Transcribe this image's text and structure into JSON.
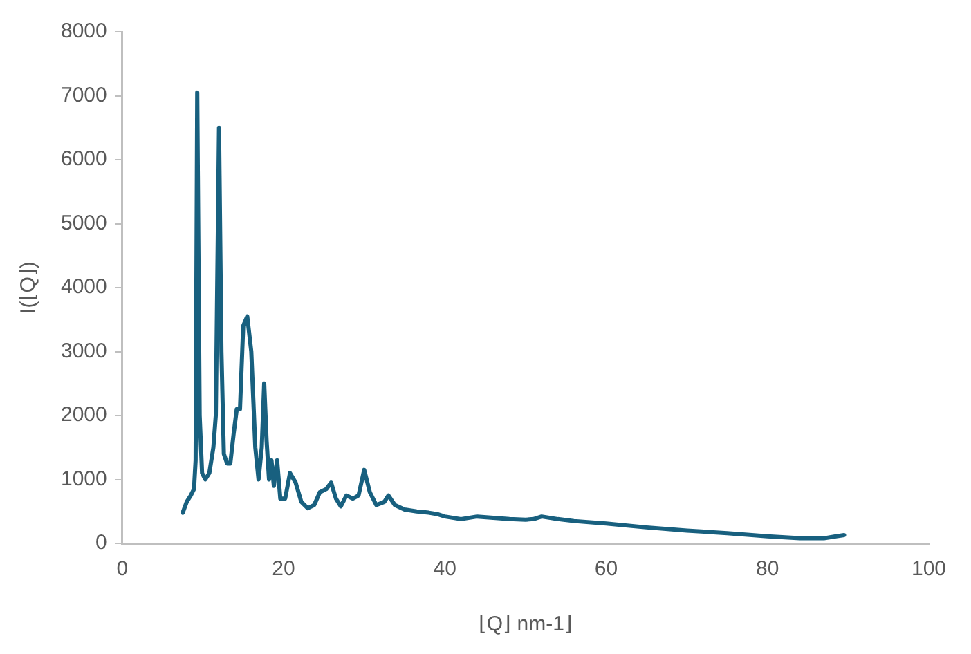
{
  "chart_data": {
    "type": "line",
    "xlabel": "⌊Q⌋ nm-1⌋",
    "ylabel": "I(⌊Q⌋)",
    "xlim": [
      0,
      100
    ],
    "xticks": [
      0,
      20,
      40,
      60,
      80,
      100
    ],
    "ylim": [
      0,
      8000
    ],
    "yticks": [
      0,
      1000,
      2000,
      3000,
      4000,
      5000,
      6000,
      7000,
      8000
    ],
    "grid": false,
    "legend": false,
    "marker": "none",
    "line_style": "solid",
    "series": [
      {
        "color": "#18607f",
        "x": [
          7.5,
          8,
          8.5,
          8.9,
          9.1,
          9.3,
          9.6,
          9.9,
          10.3,
          10.8,
          11.3,
          11.6,
          12.0,
          12.3,
          12.6,
          13.0,
          13.4,
          13.8,
          14.2,
          14.6,
          15.0,
          15.5,
          16.0,
          16.5,
          16.9,
          17.3,
          17.6,
          17.9,
          18.2,
          18.5,
          18.8,
          19.2,
          19.6,
          20.2,
          20.8,
          21.5,
          22.2,
          23.0,
          23.8,
          24.5,
          25.3,
          25.9,
          26.5,
          27.1,
          27.8,
          28.6,
          29.3,
          30.0,
          30.7,
          31.5,
          32.5,
          33.0,
          33.8,
          35,
          36.5,
          38,
          39,
          40,
          42,
          44,
          46,
          48,
          50,
          51,
          52,
          54,
          56,
          60,
          65,
          70,
          75,
          80,
          84,
          87,
          88.5,
          89.5
        ],
        "values": [
          480,
          650,
          750,
          850,
          1300,
          7050,
          2000,
          1100,
          1000,
          1100,
          1500,
          2000,
          6500,
          3000,
          1400,
          1250,
          1250,
          1700,
          2100,
          2100,
          3400,
          3550,
          3000,
          1500,
          1000,
          1500,
          2500,
          1600,
          1000,
          1300,
          900,
          1300,
          700,
          700,
          1100,
          950,
          650,
          550,
          600,
          800,
          850,
          950,
          700,
          580,
          750,
          700,
          750,
          1150,
          800,
          600,
          650,
          750,
          600,
          530,
          500,
          480,
          460,
          420,
          380,
          420,
          400,
          380,
          370,
          380,
          420,
          380,
          350,
          310,
          250,
          200,
          160,
          110,
          80,
          80,
          110,
          130
        ]
      }
    ]
  }
}
